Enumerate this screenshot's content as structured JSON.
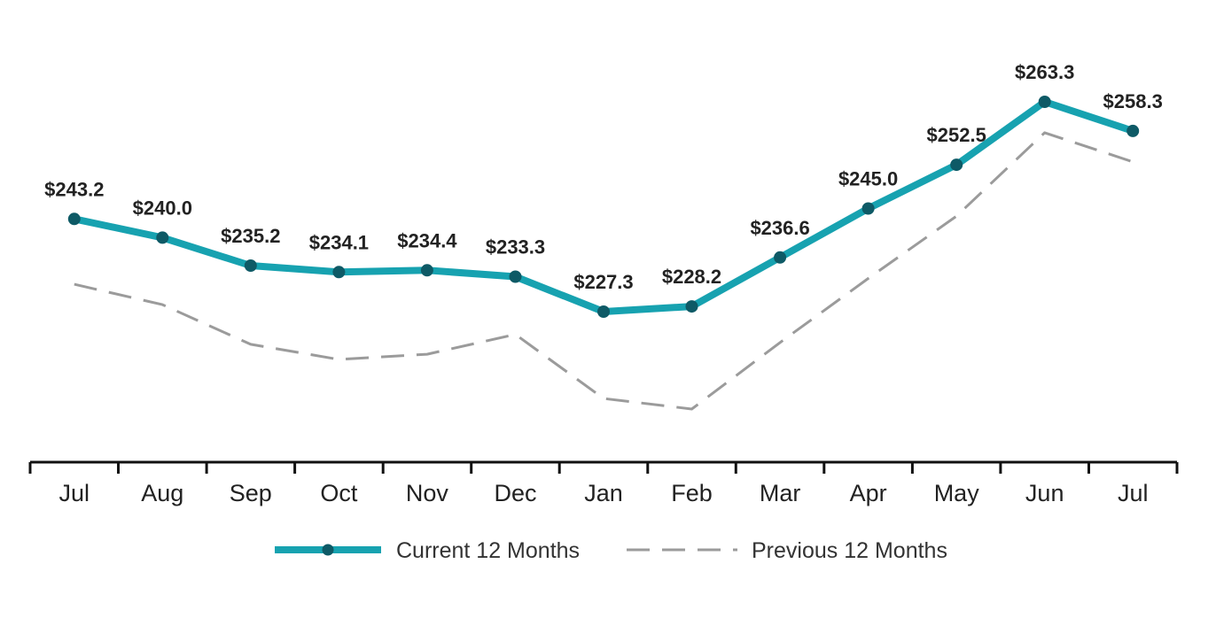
{
  "chart_data": {
    "type": "line",
    "categories": [
      "Jul",
      "Aug",
      "Sep",
      "Oct",
      "Nov",
      "Dec",
      "Jan",
      "Feb",
      "Mar",
      "Apr",
      "May",
      "Jun",
      "Jul"
    ],
    "series": [
      {
        "name": "Current 12 Months",
        "values": [
          243.2,
          240.0,
          235.2,
          234.1,
          234.4,
          233.3,
          227.3,
          228.2,
          236.6,
          245.0,
          252.5,
          263.3,
          258.3
        ],
        "labels": [
          "$243.2",
          "$240.0",
          "$235.2",
          "$234.1",
          "$234.4",
          "$233.3",
          "$227.3",
          "$228.2",
          "$236.6",
          "$245.0",
          "$252.5",
          "$263.3",
          "$258.3"
        ],
        "color": "#17a2b0",
        "marker_color": "#0e5a66",
        "style": "solid"
      },
      {
        "name": "Previous 12 Months",
        "values": [
          232.0,
          228.5,
          221.7,
          219.1,
          220.0,
          223.4,
          212.4,
          210.6,
          222.0,
          233.0,
          243.7,
          258.0,
          253.0
        ],
        "color": "#9b9b9b",
        "style": "dashed"
      }
    ],
    "ylim": [
      200,
      270
    ],
    "grid": false,
    "legend_position": "bottom"
  }
}
